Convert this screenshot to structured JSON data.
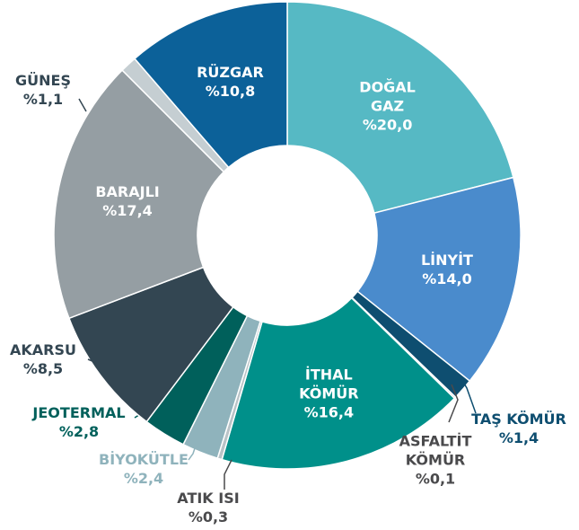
{
  "chart_data": {
    "type": "donut",
    "categories": [
      "DOĞAL GAZ",
      "LİNYİT",
      "TAŞ KÖMÜR",
      "ASFALTİT KÖMÜR",
      "İTHAL KÖMÜR",
      "ATIK ISI",
      "BİYOKÜTLE",
      "JEOTERMAL",
      "AKARSU",
      "BARAJLI",
      "GÜNEŞ",
      "RÜZGAR"
    ],
    "values": [
      20.0,
      14.0,
      1.4,
      0.1,
      16.4,
      0.3,
      2.4,
      2.8,
      8.5,
      17.4,
      1.1,
      10.8
    ],
    "value_labels": [
      "%20,0",
      "%14,0",
      "%1,4",
      "%0,1",
      "%16,4",
      "%0,3",
      "%2,4",
      "%2,8",
      "%8,5",
      "%17,4",
      "%1,1",
      "%10,8"
    ],
    "colors": [
      "#56b9c4",
      "#4a8bcc",
      "#0e4e70",
      "#6d6e70",
      "#00908a",
      "#b9c3c7",
      "#8fb3bc",
      "#00605b",
      "#334652",
      "#959ea3",
      "#c5ced2",
      "#0c6199"
    ]
  }
}
